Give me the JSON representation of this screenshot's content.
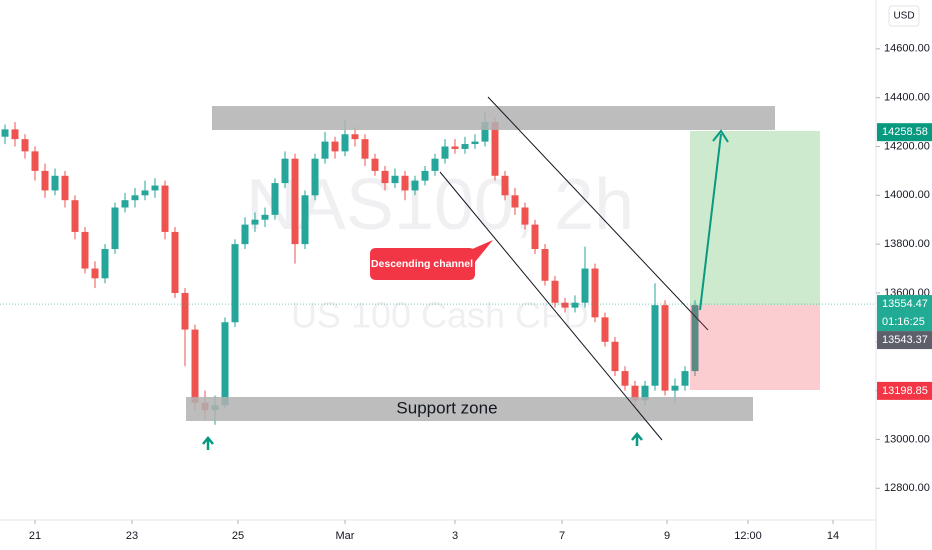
{
  "chart_data": {
    "type": "candlestick",
    "watermark": "NAS100, 2h",
    "watermark_subtitle": "US 100 Cash CFD",
    "currency": "USD",
    "up_color": "#26a69a",
    "down_color": "#ef5350",
    "ylim": [
      12670,
      14800
    ],
    "xlim": [
      -0.5,
      87.1
    ],
    "yticks": [
      {
        "value": 12800,
        "label": "12800.00"
      },
      {
        "value": 13000,
        "label": "13000.00"
      },
      {
        "value": 13200,
        "label": "13200.00"
      },
      {
        "value": 13400,
        "label": "13400.00"
      },
      {
        "value": 13600,
        "label": "13600.00"
      },
      {
        "value": 13800,
        "label": "13800.00"
      },
      {
        "value": 14000,
        "label": "14000.00"
      },
      {
        "value": 14200,
        "label": "14200.00"
      },
      {
        "value": 14400,
        "label": "14400.00"
      },
      {
        "value": 14600,
        "label": "14600.00"
      }
    ],
    "xticks": [
      {
        "value": 3,
        "label": "21"
      },
      {
        "value": 12.7,
        "label": "23"
      },
      {
        "value": 23.3,
        "label": "25"
      },
      {
        "value": 34,
        "label": "Mar"
      },
      {
        "value": 45,
        "label": "3"
      },
      {
        "value": 55.7,
        "label": "7"
      },
      {
        "value": 66.2,
        "label": "9"
      },
      {
        "value": 74.3,
        "label": "12:00"
      },
      {
        "value": 82.8,
        "label": "14"
      }
    ],
    "candles": [
      [
        14240,
        14290,
        14210,
        14270
      ],
      [
        14270,
        14300,
        14200,
        14230
      ],
      [
        14230,
        14250,
        14150,
        14180
      ],
      [
        14180,
        14200,
        14060,
        14100
      ],
      [
        14100,
        14130,
        13990,
        14020
      ],
      [
        14020,
        14110,
        14000,
        14080
      ],
      [
        14080,
        14100,
        13950,
        13980
      ],
      [
        13980,
        14000,
        13820,
        13850
      ],
      [
        13850,
        13870,
        13680,
        13700
      ],
      [
        13700,
        13730,
        13620,
        13660
      ],
      [
        13660,
        13800,
        13640,
        13780
      ],
      [
        13780,
        13970,
        13760,
        13950
      ],
      [
        13950,
        14010,
        13930,
        13980
      ],
      [
        13980,
        14030,
        13950,
        14000
      ],
      [
        14000,
        14060,
        13980,
        14020
      ],
      [
        14020,
        14070,
        13990,
        14040
      ],
      [
        14040,
        14060,
        13820,
        13850
      ],
      [
        13850,
        13870,
        13580,
        13600
      ],
      [
        13600,
        13620,
        13300,
        13450
      ],
      [
        13450,
        13470,
        13120,
        13150
      ],
      [
        13150,
        13200,
        13080,
        13120
      ],
      [
        13120,
        13180,
        13060,
        13140
      ],
      [
        13140,
        13500,
        13130,
        13480
      ],
      [
        13480,
        13820,
        13460,
        13800
      ],
      [
        13800,
        13910,
        13780,
        13880
      ],
      [
        13880,
        13930,
        13850,
        13900
      ],
      [
        13900,
        13950,
        13870,
        13920
      ],
      [
        13920,
        14070,
        13900,
        14050
      ],
      [
        14050,
        14180,
        14030,
        14150
      ],
      [
        14150,
        14170,
        13720,
        13800
      ],
      [
        13800,
        14020,
        13780,
        14000
      ],
      [
        14000,
        14170,
        13980,
        14150
      ],
      [
        14150,
        14260,
        14130,
        14220
      ],
      [
        14220,
        14240,
        14150,
        14180
      ],
      [
        14180,
        14310,
        14160,
        14250
      ],
      [
        14250,
        14280,
        14200,
        14230
      ],
      [
        14230,
        14250,
        14120,
        14150
      ],
      [
        14150,
        14170,
        14080,
        14100
      ],
      [
        14100,
        14120,
        14020,
        14050
      ],
      [
        14050,
        14110,
        14030,
        14080
      ],
      [
        14080,
        14100,
        13980,
        14020
      ],
      [
        14020,
        14080,
        14000,
        14060
      ],
      [
        14060,
        14120,
        14040,
        14100
      ],
      [
        14100,
        14170,
        14080,
        14150
      ],
      [
        14150,
        14230,
        14130,
        14200
      ],
      [
        14200,
        14230,
        14170,
        14190
      ],
      [
        14190,
        14240,
        14170,
        14210
      ],
      [
        14210,
        14250,
        14190,
        14220
      ],
      [
        14220,
        14340,
        14200,
        14300
      ],
      [
        14300,
        14320,
        14060,
        14080
      ],
      [
        14080,
        14100,
        13980,
        14000
      ],
      [
        14000,
        14030,
        13920,
        13950
      ],
      [
        13950,
        13970,
        13860,
        13880
      ],
      [
        13880,
        13900,
        13760,
        13780
      ],
      [
        13780,
        13800,
        13630,
        13650
      ],
      [
        13650,
        13670,
        13540,
        13560
      ],
      [
        13560,
        13580,
        13520,
        13540
      ],
      [
        13540,
        13590,
        13520,
        13560
      ],
      [
        13560,
        13790,
        13540,
        13700
      ],
      [
        13700,
        13720,
        13480,
        13500
      ],
      [
        13500,
        13520,
        13380,
        13400
      ],
      [
        13400,
        13420,
        13260,
        13280
      ],
      [
        13280,
        13300,
        13200,
        13220
      ],
      [
        13220,
        13240,
        13130,
        13160
      ],
      [
        13160,
        13240,
        13140,
        13220
      ],
      [
        13220,
        13640,
        13200,
        13550
      ],
      [
        13550,
        13570,
        13180,
        13200
      ],
      [
        13200,
        13250,
        13150,
        13220
      ],
      [
        13220,
        13300,
        13200,
        13280
      ],
      [
        13280,
        13570,
        13260,
        13550
      ]
    ],
    "price_markers": [
      {
        "value": 14258.58,
        "color": "#089981"
      },
      {
        "value": 13554.47,
        "color": "#22ab94",
        "countdown": "01:16:25"
      },
      {
        "value": 13543.37,
        "color": "#5d606b"
      },
      {
        "value": 13198.85,
        "color": "#f23645"
      }
    ],
    "annotations": {
      "callout": "Descending channel",
      "support": "Support zone"
    }
  }
}
